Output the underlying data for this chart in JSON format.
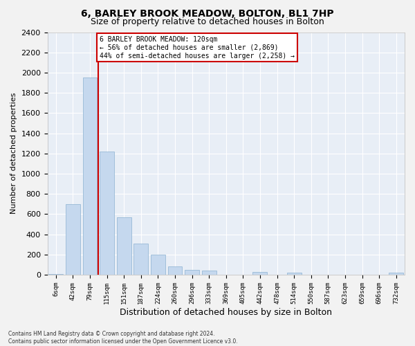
{
  "title": "6, BARLEY BROOK MEADOW, BOLTON, BL1 7HP",
  "subtitle": "Size of property relative to detached houses in Bolton",
  "xlabel": "Distribution of detached houses by size in Bolton",
  "ylabel": "Number of detached properties",
  "bar_color": "#c5d8ee",
  "bar_edge_color": "#8ab0d0",
  "bg_color": "#e8eef6",
  "fig_bg_color": "#f2f2f2",
  "grid_color": "#ffffff",
  "categories": [
    "6sqm",
    "42sqm",
    "79sqm",
    "115sqm",
    "151sqm",
    "187sqm",
    "224sqm",
    "260sqm",
    "296sqm",
    "333sqm",
    "369sqm",
    "405sqm",
    "442sqm",
    "478sqm",
    "514sqm",
    "550sqm",
    "587sqm",
    "623sqm",
    "659sqm",
    "696sqm",
    "732sqm"
  ],
  "values": [
    10,
    700,
    1950,
    1220,
    570,
    305,
    200,
    80,
    45,
    40,
    0,
    0,
    30,
    0,
    20,
    0,
    0,
    0,
    0,
    0,
    20
  ],
  "ylim": [
    0,
    2400
  ],
  "yticks": [
    0,
    200,
    400,
    600,
    800,
    1000,
    1200,
    1400,
    1600,
    1800,
    2000,
    2200,
    2400
  ],
  "property_line_x": 2.5,
  "annotation_line1": "6 BARLEY BROOK MEADOW: 120sqm",
  "annotation_line2": "← 56% of detached houses are smaller (2,869)",
  "annotation_line3": "44% of semi-detached houses are larger (2,258) →",
  "footnote": "Contains HM Land Registry data © Crown copyright and database right 2024.\nContains public sector information licensed under the Open Government Licence v3.0.",
  "red_color": "#cc0000",
  "title_fontsize": 10,
  "subtitle_fontsize": 9,
  "ylabel_fontsize": 8,
  "xlabel_fontsize": 9,
  "ytick_fontsize": 8,
  "xtick_fontsize": 6.5
}
